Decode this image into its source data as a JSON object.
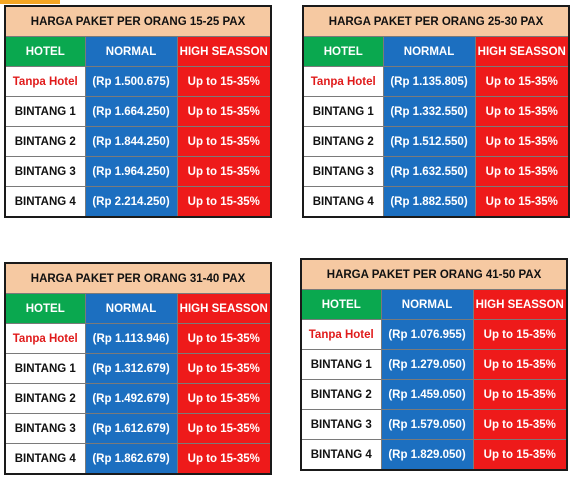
{
  "headers": {
    "hotel": "HOTEL",
    "normal": "NORMAL",
    "high": "HIGH SEASSON"
  },
  "tables": [
    {
      "title": "HARGA PAKET PER ORANG 15-25 PAX",
      "rows": [
        {
          "hotel": "Tanpa Hotel",
          "normal": "(Rp 1.500.675)",
          "high": "Up to 15-35%"
        },
        {
          "hotel": "BINTANG 1",
          "normal": "(Rp 1.664.250)",
          "high": "Up to 15-35%"
        },
        {
          "hotel": "BINTANG 2",
          "normal": "(Rp 1.844.250)",
          "high": "Up to 15-35%"
        },
        {
          "hotel": "BINTANG 3",
          "normal": "(Rp 1.964.250)",
          "high": "Up to 15-35%"
        },
        {
          "hotel": "BINTANG 4",
          "normal": "(Rp 2.214.250)",
          "high": "Up to 15-35%"
        }
      ]
    },
    {
      "title": "HARGA PAKET PER ORANG 25-30 PAX",
      "rows": [
        {
          "hotel": "Tanpa Hotel",
          "normal": "(Rp 1.135.805)",
          "high": "Up to 15-35%"
        },
        {
          "hotel": "BINTANG 1",
          "normal": "(Rp 1.332.550)",
          "high": "Up to 15-35%"
        },
        {
          "hotel": "BINTANG 2",
          "normal": "(Rp 1.512.550)",
          "high": "Up to 15-35%"
        },
        {
          "hotel": "BINTANG 3",
          "normal": "(Rp 1.632.550)",
          "high": "Up to 15-35%"
        },
        {
          "hotel": "BINTANG 4",
          "normal": "(Rp 1.882.550)",
          "high": "Up to 15-35%"
        }
      ]
    },
    {
      "title": "HARGA PAKET PER ORANG 31-40 PAX",
      "rows": [
        {
          "hotel": "Tanpa Hotel",
          "normal": "(Rp 1.113.946)",
          "high": "Up to 15-35%"
        },
        {
          "hotel": "BINTANG 1",
          "normal": "(Rp 1.312.679)",
          "high": "Up to 15-35%"
        },
        {
          "hotel": "BINTANG 2",
          "normal": "(Rp 1.492.679)",
          "high": "Up to 15-35%"
        },
        {
          "hotel": "BINTANG 3",
          "normal": "(Rp 1.612.679)",
          "high": "Up to 15-35%"
        },
        {
          "hotel": "BINTANG 4",
          "normal": "(Rp 1.862.679)",
          "high": "Up to 15-35%"
        }
      ]
    },
    {
      "title": "HARGA PAKET PER ORANG 41-50 PAX",
      "rows": [
        {
          "hotel": "Tanpa Hotel",
          "normal": "(Rp 1.076.955)",
          "high": "Up to 15-35%"
        },
        {
          "hotel": "BINTANG 1",
          "normal": "(Rp 1.279.050)",
          "high": "Up to 15-35%"
        },
        {
          "hotel": "BINTANG 2",
          "normal": "(Rp 1.459.050)",
          "high": "Up to 15-35%"
        },
        {
          "hotel": "BINTANG 3",
          "normal": "(Rp 1.579.050)",
          "high": "Up to 15-35%"
        },
        {
          "hotel": "BINTANG 4",
          "normal": "(Rp 1.829.050)",
          "high": "Up to 15-35%"
        }
      ]
    }
  ],
  "colors": {
    "title_bg": "#f6c9a2",
    "hotel_header": "#0aa84f",
    "normal": "#1c6fc0",
    "high": "#ee1a1a",
    "tanpa_hotel_text": "#e01b1b"
  }
}
